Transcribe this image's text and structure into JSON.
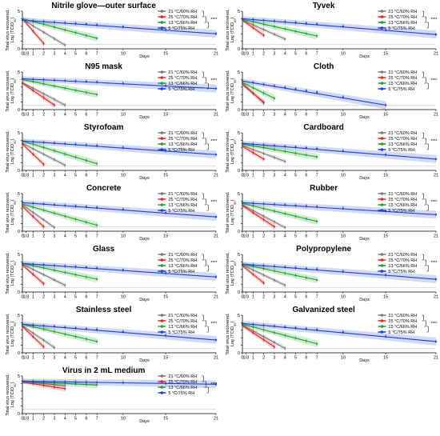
{
  "legend_entries": [
    {
      "label": "21 °C/60% RH",
      "color": "#7a7a7a"
    },
    {
      "label": "25 °C/70% RH",
      "color": "#e8231c"
    },
    {
      "label": "13 °C/66% RH",
      "color": "#1ea52a"
    },
    {
      "label": "5 °C/75% RH",
      "color": "#1f3fd6"
    }
  ],
  "axis": {
    "ylabel_line1": "Total virus recovered,",
    "ylabel_line2": "Log (TCID",
    "ylabel_sub": "50",
    "ylabel_end": ")",
    "xlabel": "Days",
    "xticks": [
      "0",
      "1/3",
      "1",
      "2",
      "3",
      "4",
      "5",
      "6",
      "7",
      "10",
      "15",
      "21"
    ],
    "yticks": [
      "0",
      "1",
      "2",
      "3",
      "4",
      "5"
    ]
  },
  "significance": "****",
  "chart_data": [
    {
      "type": "line",
      "title": "Nitrile glove—outer surface",
      "x_unit": "days",
      "xlim": [
        0,
        21
      ],
      "ylim": [
        0,
        5
      ],
      "series": [
        {
          "name": "21 °C/60% RH",
          "color": "#7a7a7a",
          "x": [
            0,
            4
          ],
          "y": [
            3.9,
            0.5
          ]
        },
        {
          "name": "25 °C/70% RH",
          "color": "#e8231c",
          "x": [
            0,
            2
          ],
          "y": [
            4.0,
            0.7
          ]
        },
        {
          "name": "13 °C/66% RH",
          "color": "#1ea52a",
          "x": [
            0,
            7
          ],
          "y": [
            4.0,
            1.4
          ]
        },
        {
          "name": "5 °C/75% RH",
          "color": "#1f3fd6",
          "x": [
            0,
            21
          ],
          "y": [
            3.8,
            2.0
          ]
        }
      ]
    },
    {
      "type": "line",
      "title": "Tyvek",
      "x_unit": "days",
      "xlim": [
        0,
        21
      ],
      "ylim": [
        0,
        5
      ],
      "series": [
        {
          "name": "21 °C/60% RH",
          "color": "#7a7a7a",
          "x": [
            0,
            4
          ],
          "y": [
            3.8,
            1.3
          ]
        },
        {
          "name": "25 °C/70% RH",
          "color": "#e8231c",
          "x": [
            0,
            2
          ],
          "y": [
            3.8,
            1.8
          ]
        },
        {
          "name": "13 °C/66% RH",
          "color": "#1ea52a",
          "x": [
            0,
            7
          ],
          "y": [
            3.9,
            1.7
          ]
        },
        {
          "name": "5 °C/75% RH",
          "color": "#1f3fd6",
          "x": [
            0,
            21
          ],
          "y": [
            4.0,
            1.9
          ]
        }
      ]
    },
    {
      "type": "line",
      "title": "N95 mask",
      "x_unit": "days",
      "xlim": [
        0,
        21
      ],
      "ylim": [
        0,
        5
      ],
      "series": [
        {
          "name": "21 °C/60% RH",
          "color": "#7a7a7a",
          "x": [
            0,
            4
          ],
          "y": [
            3.6,
            0.6
          ]
        },
        {
          "name": "25 °C/70% RH",
          "color": "#e8231c",
          "x": [
            0,
            3
          ],
          "y": [
            3.5,
            0.6
          ]
        },
        {
          "name": "13 °C/66% RH",
          "color": "#1ea52a",
          "x": [
            0,
            7
          ],
          "y": [
            4.0,
            2.0
          ]
        },
        {
          "name": "5 °C/75% RH",
          "color": "#1f3fd6",
          "x": [
            0,
            21
          ],
          "y": [
            4.1,
            2.8
          ]
        }
      ]
    },
    {
      "type": "line",
      "title": "Cloth",
      "x_unit": "days",
      "xlim": [
        0,
        21
      ],
      "ylim": [
        0,
        5
      ],
      "series": [
        {
          "name": "21 °C/60% RH",
          "color": "#7a7a7a",
          "x": [
            0,
            2
          ],
          "y": [
            3.3,
            1.0
          ]
        },
        {
          "name": "25 °C/70% RH",
          "color": "#e8231c",
          "x": [
            0,
            2
          ],
          "y": [
            3.5,
            0.9
          ]
        },
        {
          "name": "13 °C/66% RH",
          "color": "#1ea52a",
          "x": [
            0,
            3
          ],
          "y": [
            3.6,
            1.5
          ]
        },
        {
          "name": "5 °C/75% RH",
          "color": "#1f3fd6",
          "x": [
            0,
            15
          ],
          "y": [
            3.8,
            0.6
          ]
        }
      ]
    },
    {
      "type": "line",
      "title": "Styrofoam",
      "x_unit": "days",
      "xlim": [
        0,
        21
      ],
      "ylim": [
        0,
        5
      ],
      "series": [
        {
          "name": "21 °C/60% RH",
          "color": "#7a7a7a",
          "x": [
            0,
            4
          ],
          "y": [
            3.6,
            0.7
          ]
        },
        {
          "name": "25 °C/70% RH",
          "color": "#e8231c",
          "x": [
            0,
            2
          ],
          "y": [
            3.5,
            0.8
          ]
        },
        {
          "name": "13 °C/66% RH",
          "color": "#1ea52a",
          "x": [
            0,
            7
          ],
          "y": [
            3.9,
            0.9
          ]
        },
        {
          "name": "5 °C/75% RH",
          "color": "#1f3fd6",
          "x": [
            0,
            21
          ],
          "y": [
            3.9,
            2.1
          ]
        }
      ]
    },
    {
      "type": "line",
      "title": "Cardboard",
      "x_unit": "days",
      "xlim": [
        0,
        21
      ],
      "ylim": [
        0,
        5
      ],
      "series": [
        {
          "name": "21 °C/60% RH",
          "color": "#7a7a7a",
          "x": [
            0,
            4
          ],
          "y": [
            3.3,
            1.2
          ]
        },
        {
          "name": "25 °C/70% RH",
          "color": "#e8231c",
          "x": [
            0,
            2
          ],
          "y": [
            3.2,
            1.5
          ]
        },
        {
          "name": "13 °C/66% RH",
          "color": "#1ea52a",
          "x": [
            0,
            7
          ],
          "y": [
            3.5,
            1.8
          ]
        },
        {
          "name": "5 °C/75% RH",
          "color": "#1f3fd6",
          "x": [
            0,
            21
          ],
          "y": [
            3.6,
            1.5
          ]
        }
      ]
    },
    {
      "type": "line",
      "title": "Concrete",
      "x_unit": "days",
      "xlim": [
        0,
        21
      ],
      "ylim": [
        0,
        5
      ],
      "series": [
        {
          "name": "21 °C/60% RH",
          "color": "#7a7a7a",
          "x": [
            0,
            3
          ],
          "y": [
            3.5,
            0.5
          ]
        },
        {
          "name": "25 °C/70% RH",
          "color": "#e8231c",
          "x": [
            0,
            2
          ],
          "y": [
            3.3,
            0.6
          ]
        },
        {
          "name": "13 °C/66% RH",
          "color": "#1ea52a",
          "x": [
            0,
            7
          ],
          "y": [
            3.6,
            0.8
          ]
        },
        {
          "name": "5 °C/75% RH",
          "color": "#1f3fd6",
          "x": [
            0,
            21
          ],
          "y": [
            3.8,
            1.9
          ]
        }
      ]
    },
    {
      "type": "line",
      "title": "Rubber",
      "x_unit": "days",
      "xlim": [
        0,
        21
      ],
      "ylim": [
        0,
        5
      ],
      "series": [
        {
          "name": "21 °C/60% RH",
          "color": "#7a7a7a",
          "x": [
            0,
            4
          ],
          "y": [
            3.5,
            0.5
          ]
        },
        {
          "name": "25 °C/70% RH",
          "color": "#e8231c",
          "x": [
            0,
            3
          ],
          "y": [
            3.4,
            0.6
          ]
        },
        {
          "name": "13 °C/66% RH",
          "color": "#1ea52a",
          "x": [
            0,
            7
          ],
          "y": [
            3.7,
            1.3
          ]
        },
        {
          "name": "5 °C/75% RH",
          "color": "#1f3fd6",
          "x": [
            0,
            21
          ],
          "y": [
            3.8,
            2.2
          ]
        }
      ]
    },
    {
      "type": "line",
      "title": "Glass",
      "x_unit": "days",
      "xlim": [
        0,
        21
      ],
      "ylim": [
        0,
        5
      ],
      "series": [
        {
          "name": "21 °C/60% RH",
          "color": "#7a7a7a",
          "x": [
            0,
            4
          ],
          "y": [
            3.7,
            0.9
          ]
        },
        {
          "name": "25 °C/70% RH",
          "color": "#e8231c",
          "x": [
            0,
            2
          ],
          "y": [
            3.6,
            1.1
          ]
        },
        {
          "name": "13 °C/66% RH",
          "color": "#1ea52a",
          "x": [
            0,
            7
          ],
          "y": [
            3.8,
            1.7
          ]
        },
        {
          "name": "5 °C/75% RH",
          "color": "#1f3fd6",
          "x": [
            0,
            21
          ],
          "y": [
            3.8,
            2.0
          ]
        }
      ]
    },
    {
      "type": "line",
      "title": "Polypropylene",
      "x_unit": "days",
      "xlim": [
        0,
        21
      ],
      "ylim": [
        0,
        5
      ],
      "series": [
        {
          "name": "21 °C/60% RH",
          "color": "#7a7a7a",
          "x": [
            0,
            4
          ],
          "y": [
            3.6,
            0.9
          ]
        },
        {
          "name": "25 °C/70% RH",
          "color": "#e8231c",
          "x": [
            0,
            2
          ],
          "y": [
            3.5,
            1.2
          ]
        },
        {
          "name": "13 °C/66% RH",
          "color": "#1ea52a",
          "x": [
            0,
            7
          ],
          "y": [
            3.7,
            1.6
          ]
        },
        {
          "name": "5 °C/75% RH",
          "color": "#1f3fd6",
          "x": [
            0,
            21
          ],
          "y": [
            3.7,
            1.7
          ]
        }
      ]
    },
    {
      "type": "line",
      "title": "Stainless steel",
      "x_unit": "days",
      "xlim": [
        0,
        21
      ],
      "ylim": [
        0,
        5
      ],
      "series": [
        {
          "name": "21 °C/60% RH",
          "color": "#7a7a7a",
          "x": [
            0,
            3
          ],
          "y": [
            3.6,
            0.7
          ]
        },
        {
          "name": "25 °C/70% RH",
          "color": "#e8231c",
          "x": [
            0,
            2
          ],
          "y": [
            3.5,
            0.8
          ]
        },
        {
          "name": "13 °C/66% RH",
          "color": "#1ea52a",
          "x": [
            0,
            7
          ],
          "y": [
            3.8,
            1.5
          ]
        },
        {
          "name": "5 °C/75% RH",
          "color": "#1f3fd6",
          "x": [
            0,
            21
          ],
          "y": [
            3.8,
            1.7
          ]
        }
      ]
    },
    {
      "type": "line",
      "title": "Galvanized steel",
      "x_unit": "days",
      "xlim": [
        0,
        21
      ],
      "ylim": [
        0,
        5
      ],
      "series": [
        {
          "name": "21 °C/60% RH",
          "color": "#7a7a7a",
          "x": [
            0,
            4
          ],
          "y": [
            3.7,
            0.6
          ]
        },
        {
          "name": "25 °C/70% RH",
          "color": "#e8231c",
          "x": [
            0,
            3
          ],
          "y": [
            3.6,
            0.8
          ]
        },
        {
          "name": "13 °C/66% RH",
          "color": "#1ea52a",
          "x": [
            0,
            7
          ],
          "y": [
            3.8,
            1.2
          ]
        },
        {
          "name": "5 °C/75% RH",
          "color": "#1f3fd6",
          "x": [
            0,
            21
          ],
          "y": [
            3.9,
            1.5
          ]
        }
      ]
    },
    {
      "type": "line",
      "title": "Virus in 2 mL medium",
      "x_unit": "days",
      "xlim": [
        0,
        21
      ],
      "ylim": [
        0,
        5
      ],
      "series": [
        {
          "name": "21 °C/60% RH",
          "color": "#7a7a7a",
          "x": [
            0,
            4
          ],
          "y": [
            4.3,
            3.7
          ]
        },
        {
          "name": "25 °C/70% RH",
          "color": "#e8231c",
          "x": [
            0,
            4
          ],
          "y": [
            4.2,
            3.3
          ]
        },
        {
          "name": "13 °C/66% RH",
          "color": "#1ea52a",
          "x": [
            0,
            7
          ],
          "y": [
            4.3,
            3.8
          ]
        },
        {
          "name": "5 °C/75% RH",
          "color": "#1f3fd6",
          "x": [
            0,
            21
          ],
          "y": [
            4.3,
            3.9
          ]
        }
      ]
    }
  ]
}
